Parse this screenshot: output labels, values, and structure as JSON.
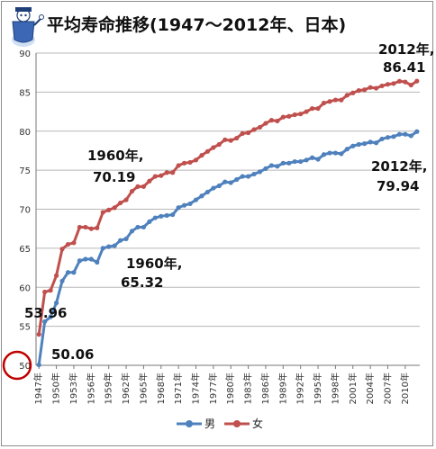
{
  "chart_data": {
    "type": "line",
    "title": "平均寿命推移(1947〜2012年、日本)",
    "ylim": [
      50,
      90
    ],
    "yticks": [
      50,
      55,
      60,
      65,
      70,
      75,
      80,
      85,
      90
    ],
    "grid": true,
    "legend": "bottom-center",
    "x": [
      1947,
      1948,
      1949,
      1950,
      1951,
      1952,
      1953,
      1954,
      1955,
      1956,
      1957,
      1958,
      1959,
      1960,
      1961,
      1962,
      1963,
      1964,
      1965,
      1966,
      1967,
      1968,
      1969,
      1970,
      1971,
      1972,
      1973,
      1974,
      1975,
      1976,
      1977,
      1978,
      1979,
      1980,
      1981,
      1982,
      1983,
      1984,
      1985,
      1986,
      1987,
      1988,
      1989,
      1990,
      1991,
      1992,
      1993,
      1994,
      1995,
      1996,
      1997,
      1998,
      1999,
      2000,
      2001,
      2002,
      2003,
      2004,
      2005,
      2006,
      2007,
      2008,
      2009,
      2010,
      2011,
      2012
    ],
    "xtick_labels": [
      "1947年",
      "1950年",
      "1953年",
      "1956年",
      "1959年",
      "1962年",
      "1965年",
      "1968年",
      "1971年",
      "1974年",
      "1977年",
      "1980年",
      "1983年",
      "1986年",
      "1989年",
      "1992年",
      "1995年",
      "1998年",
      "2001年",
      "2004年",
      "2007年",
      "2010年"
    ],
    "series": [
      {
        "name": "男",
        "color": "#4f81bd",
        "values": [
          50.06,
          55.6,
          56.2,
          58.0,
          60.8,
          61.9,
          61.9,
          63.4,
          63.6,
          63.6,
          63.2,
          65.0,
          65.2,
          65.32,
          66.0,
          66.2,
          67.2,
          67.7,
          67.7,
          68.4,
          68.9,
          69.1,
          69.2,
          69.3,
          70.2,
          70.5,
          70.7,
          71.2,
          71.7,
          72.2,
          72.7,
          73.0,
          73.5,
          73.4,
          73.8,
          74.2,
          74.2,
          74.5,
          74.8,
          75.2,
          75.6,
          75.5,
          75.9,
          75.9,
          76.1,
          76.1,
          76.3,
          76.6,
          76.4,
          77.0,
          77.2,
          77.2,
          77.1,
          77.7,
          78.1,
          78.3,
          78.4,
          78.6,
          78.5,
          79.0,
          79.2,
          79.3,
          79.6,
          79.6,
          79.4,
          79.94
        ]
      },
      {
        "name": "女",
        "color": "#c0504d",
        "values": [
          53.96,
          59.4,
          59.6,
          61.5,
          64.9,
          65.5,
          65.7,
          67.7,
          67.7,
          67.5,
          67.6,
          69.6,
          69.9,
          70.19,
          70.8,
          71.2,
          72.3,
          72.9,
          72.9,
          73.6,
          74.2,
          74.3,
          74.7,
          74.7,
          75.6,
          75.9,
          76.0,
          76.3,
          76.9,
          77.4,
          77.9,
          78.3,
          78.9,
          78.8,
          79.1,
          79.7,
          79.8,
          80.2,
          80.5,
          81.0,
          81.4,
          81.3,
          81.8,
          81.9,
          82.1,
          82.2,
          82.5,
          82.9,
          82.9,
          83.6,
          83.8,
          84.0,
          83.99,
          84.6,
          84.9,
          85.2,
          85.3,
          85.6,
          85.5,
          85.8,
          86.0,
          86.1,
          86.4,
          86.3,
          85.9,
          86.41
        ]
      }
    ],
    "annotations": [
      {
        "text": "2012年,",
        "value": "86.41",
        "series": "女",
        "year": 2012
      },
      {
        "text": "1960年,",
        "value": "70.19",
        "series": "女",
        "year": 1960
      },
      {
        "text": "2012年,",
        "value": "79.94",
        "series": "男",
        "year": 2012
      },
      {
        "text": "1960年,",
        "value": "65.32",
        "series": "男",
        "year": 1960
      },
      {
        "text": "53.96",
        "series": "女",
        "year": 1947
      },
      {
        "text": "50.06",
        "series": "男",
        "year": 1947
      }
    ]
  },
  "colors": {
    "male": "#4f81bd",
    "female": "#c0504d",
    "highlight_circle": "#c00000",
    "grid": "#b7b7b7"
  },
  "mascot_icon": "mascot-icon"
}
